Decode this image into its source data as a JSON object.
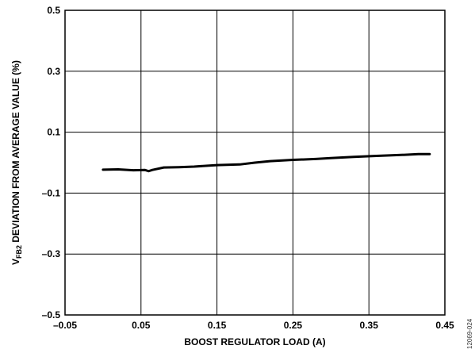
{
  "chart_data": {
    "type": "line",
    "xlabel": "BOOST REGULATOR LOAD (A)",
    "ylabel": {
      "prefix": "V",
      "subscript": "FB2",
      "suffix": " DEVIATION FROM AVERAGE VALUE (%)"
    },
    "xlim": [
      -0.05,
      0.45
    ],
    "ylim": [
      -0.5,
      0.5
    ],
    "x_ticks": [
      -0.05,
      0.05,
      0.15,
      0.25,
      0.35,
      0.45
    ],
    "x_tick_labels": [
      "–0.05",
      "0.05",
      "0.15",
      "0.25",
      "0.35",
      "0.45"
    ],
    "y_ticks": [
      -0.5,
      -0.3,
      -0.1,
      0.1,
      0.3,
      0.5
    ],
    "y_tick_labels": [
      "–0.5",
      "–0.3",
      "–0.1",
      "0.1",
      "0.3",
      "0.5"
    ],
    "grid": true,
    "series": [
      {
        "color": "#000000",
        "x": [
          0.0,
          0.02,
          0.04,
          0.055,
          0.06,
          0.065,
          0.08,
          0.1,
          0.12,
          0.15,
          0.18,
          0.2,
          0.22,
          0.25,
          0.28,
          0.3,
          0.33,
          0.36,
          0.38,
          0.4,
          0.415,
          0.43
        ],
        "y": [
          -0.023,
          -0.022,
          -0.025,
          -0.024,
          -0.028,
          -0.024,
          -0.016,
          -0.015,
          -0.013,
          -0.008,
          -0.006,
          0.0,
          0.005,
          0.009,
          0.012,
          0.015,
          0.019,
          0.022,
          0.024,
          0.026,
          0.028,
          0.028
        ]
      }
    ]
  },
  "figure_id": "12069-024"
}
